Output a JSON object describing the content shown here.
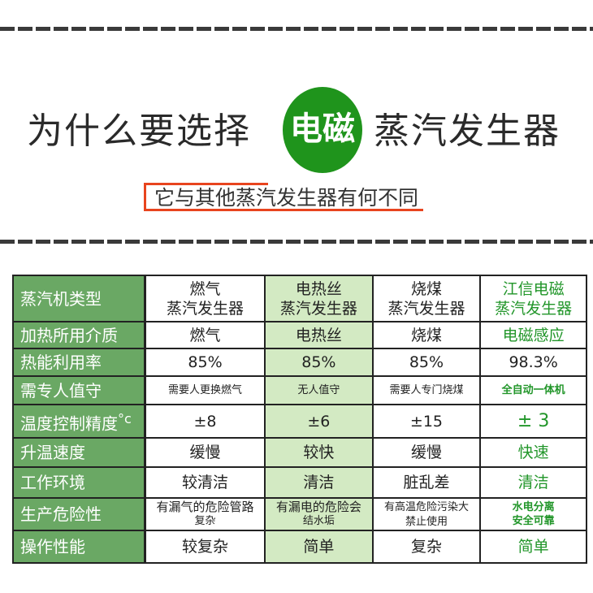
{
  "header": {
    "title_left": "为什么要选择",
    "title_highlight": "电磁",
    "title_right": "蒸汽发生器",
    "subtitle": "它与其他蒸汽发生器有何不同",
    "accent_color": "#1f941c",
    "underline_color": "#e8441e"
  },
  "table": {
    "rows": [
      {
        "label": "蒸汽机类型",
        "cells": [
          [
            "燃气",
            "蒸汽发生器"
          ],
          [
            "电热丝",
            "蒸汽发生器"
          ],
          [
            "烧煤",
            "蒸汽发生器"
          ],
          [
            "江信电磁",
            "蒸汽发生器"
          ]
        ]
      },
      {
        "label": "加热所用介质",
        "cells": [
          "燃气",
          "电热丝",
          "烧煤",
          "电磁感应"
        ]
      },
      {
        "label": "热能利用率",
        "cells": [
          "85%",
          "85%",
          "85%",
          "98.3%"
        ]
      },
      {
        "label": "需专人值守",
        "cells": [
          "需要人更换燃气",
          "无人值守",
          "需要人专门烧煤",
          "全自动一体机"
        ]
      },
      {
        "label": "温度控制精度",
        "unit": "°c",
        "cells": [
          "±8",
          "±6",
          "±15",
          "± 3"
        ]
      },
      {
        "label": "升温速度",
        "cells": [
          "缓慢",
          "较快",
          "缓慢",
          "快速"
        ]
      },
      {
        "label": "工作环境",
        "cells": [
          "较清洁",
          "清洁",
          "脏乱差",
          "清洁"
        ]
      },
      {
        "label": "生产危险性",
        "cells": [
          [
            "有漏气的危险管路",
            "复杂"
          ],
          [
            "有漏电的危险会",
            "结水垢"
          ],
          [
            "有高温危险污染大",
            "禁止使用"
          ],
          [
            "水电分离",
            "安全可靠"
          ]
        ]
      },
      {
        "label": "操作性能",
        "cells": [
          "较复杂",
          "简单",
          "复杂",
          "简单"
        ]
      }
    ],
    "header_col_color": "#6aa864",
    "highlight_col_color": "#d3eac3",
    "green_text_color": "#22962a"
  }
}
